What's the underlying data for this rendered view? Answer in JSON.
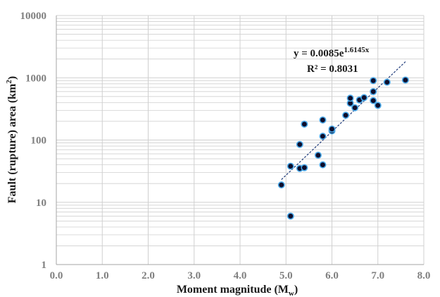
{
  "chart_data": {
    "type": "scatter",
    "title": "",
    "xlabel": "Moment magnitude (M",
    "xlabel_sub": "w",
    "xlabel_end": ")",
    "ylabel": "Fault (rupture)  area (km",
    "ylabel_sup": "2",
    "ylabel_end": ")",
    "xlim": [
      0,
      8
    ],
    "ylim": [
      1,
      10000
    ],
    "y_scale": "log",
    "grid": true,
    "x_ticks": [
      "0.0",
      "1.0",
      "2.0",
      "3.0",
      "4.0",
      "5.0",
      "6.0",
      "7.0",
      "8.0"
    ],
    "y_ticks": [
      "1",
      "10",
      "100",
      "1000",
      "10000"
    ],
    "trendline": {
      "type": "exponential",
      "a": 0.0085,
      "b": 1.6145,
      "x_range": [
        4.9,
        7.6
      ],
      "equation_prefix": "y = 0.0085e",
      "equation_exponent": "1.6145x",
      "r2_label": "R² = 0.8031"
    },
    "series": [
      {
        "x": [
          4.9,
          5.1,
          5.1,
          5.3,
          5.3,
          5.4,
          5.4,
          5.7,
          5.8,
          5.8,
          5.8,
          6.0,
          6.0,
          6.3,
          6.4,
          6.4,
          6.5,
          6.6,
          6.7,
          6.9,
          6.9,
          6.9,
          7.0,
          7.2,
          7.6
        ],
        "y": [
          19,
          6,
          38,
          35,
          85,
          36,
          180,
          57,
          40,
          115,
          210,
          140,
          150,
          250,
          390,
          470,
          330,
          440,
          480,
          430,
          600,
          900,
          360,
          850,
          920
        ]
      }
    ],
    "colors": {
      "marker_fill": "#0d0d2b",
      "marker_edge": "#4aa8e8",
      "trendline": "#1f3b7a",
      "grid": "#d0d0d0",
      "tick_text": "#7f7f7f"
    }
  }
}
